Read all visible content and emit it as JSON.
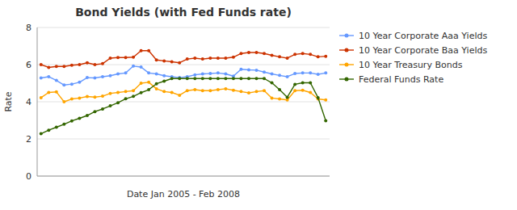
{
  "chart_data": {
    "type": "line",
    "title": "Bond Yields (with Fed Funds rate)",
    "xlabel": "Date Jan 2005 - Feb 2008",
    "ylabel": "Rate",
    "categories": [
      null,
      null,
      null,
      null,
      null,
      null,
      null,
      null,
      null,
      null,
      null,
      null,
      null,
      null,
      null,
      null,
      null,
      null,
      null,
      null,
      null,
      null,
      null,
      null,
      null,
      null,
      null,
      null,
      null,
      null,
      null,
      null,
      null,
      null,
      null,
      null,
      null,
      null
    ],
    "ylim": [
      0,
      8
    ],
    "yticks": [
      0,
      2,
      4,
      6,
      8
    ],
    "grid": true,
    "legend": "right",
    "tick_labels": "y",
    "marker": "circle",
    "series": [
      {
        "name": "10 Year Corporate Aaa Yields",
        "color": "#6699FF",
        "values": [
          5.28,
          5.35,
          5.15,
          4.9,
          4.95,
          5.05,
          5.3,
          5.28,
          5.35,
          5.4,
          5.5,
          5.55,
          5.92,
          5.87,
          5.55,
          5.5,
          5.4,
          5.35,
          5.3,
          5.35,
          5.45,
          5.5,
          5.52,
          5.55,
          5.5,
          5.38,
          5.75,
          5.72,
          5.7,
          5.6,
          5.5,
          5.42,
          5.35,
          5.52,
          5.55,
          5.55,
          5.48,
          5.55
        ]
      },
      {
        "name": "10 Year Corporate Baa Yields",
        "color": "#CC3300",
        "values": [
          6.0,
          5.85,
          5.9,
          5.9,
          5.97,
          6.0,
          6.1,
          6.0,
          6.05,
          6.35,
          6.38,
          6.38,
          6.4,
          6.75,
          6.75,
          6.25,
          6.2,
          6.15,
          6.1,
          6.3,
          6.35,
          6.3,
          6.35,
          6.35,
          6.35,
          6.4,
          6.6,
          6.65,
          6.65,
          6.6,
          6.5,
          6.42,
          6.35,
          6.55,
          6.6,
          6.55,
          6.42,
          6.45
        ]
      },
      {
        "name": "10 Year Treasury Bonds",
        "color": "#FFA500",
        "values": [
          4.22,
          4.5,
          4.53,
          4.0,
          4.15,
          4.2,
          4.28,
          4.25,
          4.3,
          4.45,
          4.5,
          4.55,
          4.6,
          5.0,
          5.05,
          4.7,
          4.55,
          4.5,
          4.35,
          4.6,
          4.65,
          4.6,
          4.6,
          4.65,
          4.7,
          4.62,
          4.55,
          4.48,
          4.55,
          4.6,
          4.2,
          4.15,
          4.1,
          4.6,
          4.62,
          4.5,
          4.15,
          4.1
        ]
      },
      {
        "name": "Federal Funds Rate",
        "color": "#336600",
        "values": [
          2.28,
          2.47,
          2.63,
          2.79,
          2.97,
          3.11,
          3.26,
          3.47,
          3.61,
          3.78,
          3.95,
          4.16,
          4.29,
          4.49,
          4.65,
          4.97,
          5.11,
          5.25,
          5.25,
          5.25,
          5.25,
          5.25,
          5.25,
          5.25,
          5.25,
          5.25,
          5.25,
          5.25,
          5.25,
          5.25,
          5.02,
          4.65,
          4.24,
          4.94,
          5.02,
          5.02,
          4.22,
          2.98
        ]
      }
    ]
  }
}
